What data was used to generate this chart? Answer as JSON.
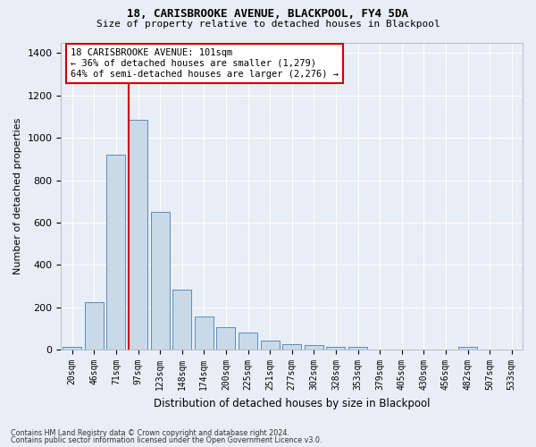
{
  "title": "18, CARISBROOKE AVENUE, BLACKPOOL, FY4 5DA",
  "subtitle": "Size of property relative to detached houses in Blackpool",
  "xlabel": "Distribution of detached houses by size in Blackpool",
  "ylabel": "Number of detached properties",
  "categories": [
    "20sqm",
    "46sqm",
    "71sqm",
    "97sqm",
    "123sqm",
    "148sqm",
    "174sqm",
    "200sqm",
    "225sqm",
    "251sqm",
    "277sqm",
    "302sqm",
    "328sqm",
    "353sqm",
    "379sqm",
    "405sqm",
    "430sqm",
    "456sqm",
    "482sqm",
    "507sqm",
    "533sqm"
  ],
  "values": [
    15,
    225,
    920,
    1085,
    650,
    285,
    155,
    105,
    80,
    45,
    25,
    20,
    15,
    15,
    0,
    0,
    0,
    0,
    15,
    0,
    0
  ],
  "bar_color": "#c9d9e8",
  "bar_edge_color": "#5b8db8",
  "property_line_idx": 3,
  "property_line_color": "#cc0000",
  "annotation_text": "18 CARISBROOKE AVENUE: 101sqm\n← 36% of detached houses are smaller (1,279)\n64% of semi-detached houses are larger (2,276) →",
  "annotation_box_facecolor": "#ffffff",
  "annotation_box_edgecolor": "#cc0000",
  "bg_color": "#e8eef5",
  "plot_bg_color": "#e8eef5",
  "grid_color": "#ffffff",
  "yticks": [
    0,
    200,
    400,
    600,
    800,
    1000,
    1200,
    1400
  ],
  "ylim": [
    0,
    1450
  ],
  "title_fontsize": 9,
  "subtitle_fontsize": 8,
  "footer_line1": "Contains HM Land Registry data © Crown copyright and database right 2024.",
  "footer_line2": "Contains public sector information licensed under the Open Government Licence v3.0."
}
